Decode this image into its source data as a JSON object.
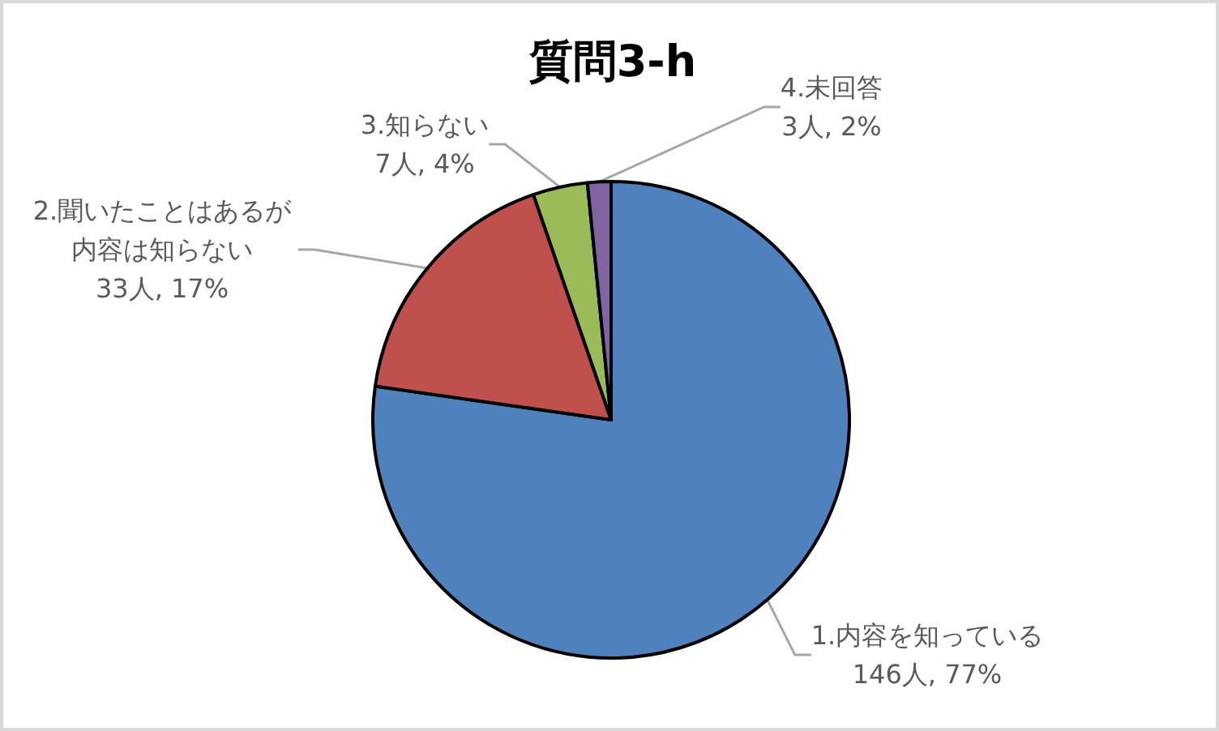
{
  "chart_data": {
    "type": "pie",
    "title": "質問3-h",
    "categories": [
      "1.内容を知っている",
      "2.聞いたことはあるが内容は知らない",
      "3.知らない",
      "4.未回答"
    ],
    "values": [
      146,
      33,
      7,
      3
    ],
    "colors": [
      "#4f81bd",
      "#c0504d",
      "#9bbb59",
      "#8064a2"
    ],
    "value_labels": [
      "146人, 77%",
      "33人, 17%",
      "7人, 4%",
      "3人, 2%"
    ]
  }
}
